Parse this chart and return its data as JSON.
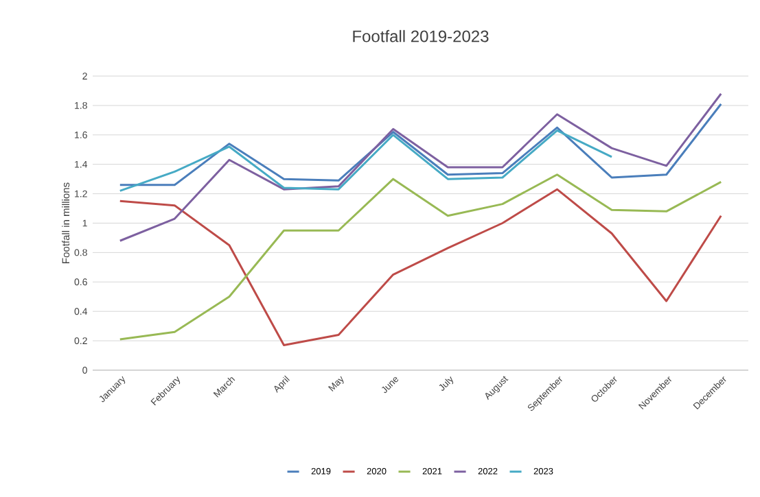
{
  "chart_data": {
    "type": "line",
    "title": "Footfall 2019-2023",
    "ylabel": "Footfall in millions",
    "categories": [
      "January",
      "February",
      "March",
      "April",
      "May",
      "June",
      "July",
      "August",
      "September",
      "October",
      "November",
      "December"
    ],
    "series": [
      {
        "name": "2019",
        "color": "#4a7ebb",
        "values": [
          1.26,
          1.26,
          1.54,
          1.3,
          1.29,
          1.62,
          1.33,
          1.34,
          1.65,
          1.31,
          1.33,
          1.81
        ]
      },
      {
        "name": "2020",
        "color": "#be4b48",
        "values": [
          1.15,
          1.12,
          0.85,
          0.17,
          0.24,
          0.65,
          0.83,
          1.0,
          1.23,
          0.93,
          0.47,
          1.05
        ]
      },
      {
        "name": "2021",
        "color": "#98b954",
        "values": [
          0.21,
          0.26,
          0.5,
          0.95,
          0.95,
          1.3,
          1.05,
          1.13,
          1.33,
          1.09,
          1.08,
          1.28
        ]
      },
      {
        "name": "2022",
        "color": "#7d60a0",
        "values": [
          0.88,
          1.03,
          1.43,
          1.23,
          1.25,
          1.64,
          1.38,
          1.38,
          1.74,
          1.51,
          1.39,
          1.88
        ]
      },
      {
        "name": "2023",
        "color": "#46aac5",
        "values": [
          1.22,
          1.35,
          1.52,
          1.24,
          1.23,
          1.6,
          1.3,
          1.31,
          1.63,
          1.45,
          null,
          null
        ]
      }
    ],
    "ylim": [
      0,
      2
    ],
    "yticks": [
      0,
      0.2,
      0.4,
      0.6,
      0.8,
      1,
      1.2,
      1.4,
      1.6,
      1.8,
      2
    ],
    "grid": "y",
    "legend": "bottom",
    "marker": "none",
    "line_style": "solid"
  }
}
